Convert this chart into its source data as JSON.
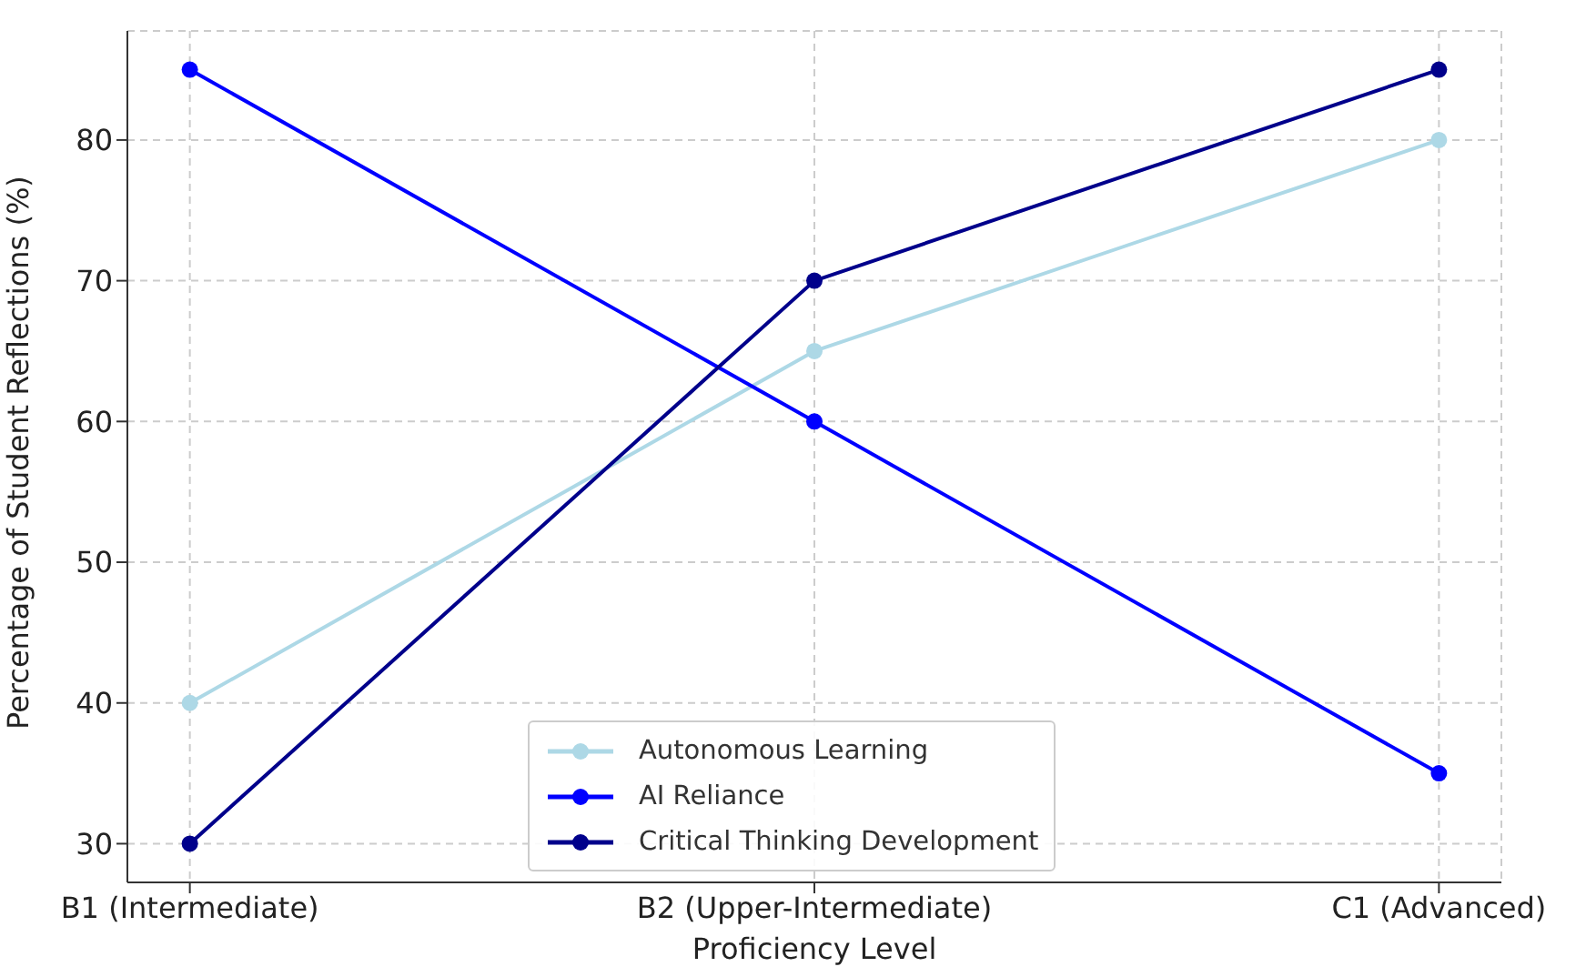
{
  "chart_data": {
    "type": "line",
    "xlabel": "Proficiency Level",
    "ylabel": "Percentage of Student Reflections (%)",
    "categories": [
      "B1 (Intermediate)",
      "B2 (Upper-Intermediate)",
      "C1 (Advanced)"
    ],
    "series": [
      {
        "name": "Autonomous Learning",
        "color": "#add8e6",
        "values": [
          40,
          65,
          80
        ]
      },
      {
        "name": "AI Reliance",
        "color": "#0000ff",
        "values": [
          85,
          60,
          35
        ]
      },
      {
        "name": "Critical Thinking Development",
        "color": "#00008b",
        "values": [
          30,
          70,
          85
        ]
      }
    ],
    "ylim": [
      27.25,
      87.75
    ],
    "yticks": [
      30,
      40,
      50,
      60,
      70,
      80
    ],
    "grid": true,
    "legend": "bottom",
    "marker": "circle",
    "line_style": "solid"
  }
}
